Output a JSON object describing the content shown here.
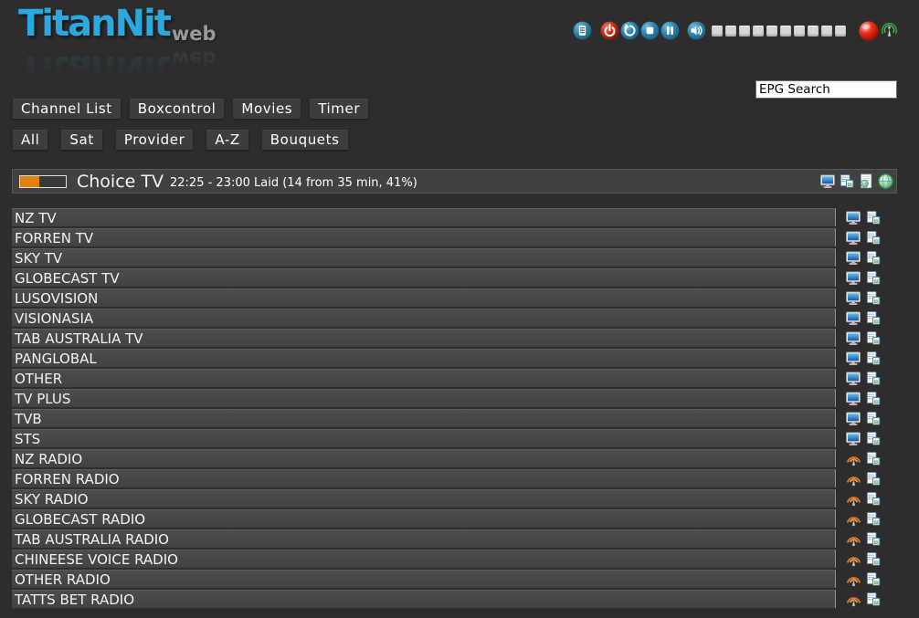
{
  "app": {
    "title_primary": "TitanNit",
    "title_secondary": "web"
  },
  "toolbar": {
    "icons": [
      "remote-icon",
      "power-icon",
      "restart-icon",
      "stop-icon",
      "pause-icon",
      "volume-icon",
      "record-icon",
      "signal-icon"
    ],
    "volume_segments": 10
  },
  "search": {
    "value": "EPG Search"
  },
  "nav": {
    "main": [
      {
        "label": "Channel List"
      },
      {
        "label": "Boxcontrol"
      },
      {
        "label": "Movies"
      },
      {
        "label": "Timer"
      }
    ],
    "filters": [
      {
        "label": "All"
      },
      {
        "label": "Sat"
      },
      {
        "label": "Provider"
      },
      {
        "label": "A-Z"
      },
      {
        "label": "Bouquets"
      }
    ]
  },
  "now_playing": {
    "channel": "Choice TV",
    "time": "22:25 - 23:00",
    "program": "Laid",
    "details": "22:25 - 23:00 Laid (14 from 35 min, 41%)",
    "progress_percent": 41,
    "icons": [
      "stream-icon",
      "epg-icon",
      "webtv-icon",
      "globe-icon"
    ]
  },
  "channels": [
    {
      "name": "NZ TV",
      "type": "tv"
    },
    {
      "name": "FORREN TV",
      "type": "tv"
    },
    {
      "name": "SKY TV",
      "type": "tv"
    },
    {
      "name": "GLOBECAST TV",
      "type": "tv"
    },
    {
      "name": "LUSOVISION",
      "type": "tv"
    },
    {
      "name": "VISIONASIA",
      "type": "tv"
    },
    {
      "name": "TAB AUSTRALIA TV",
      "type": "tv"
    },
    {
      "name": "PANGLOBAL",
      "type": "tv"
    },
    {
      "name": "OTHER",
      "type": "tv"
    },
    {
      "name": "TV PLUS",
      "type": "tv"
    },
    {
      "name": "TVB",
      "type": "tv"
    },
    {
      "name": "STS",
      "type": "tv"
    },
    {
      "name": "NZ RADIO",
      "type": "radio"
    },
    {
      "name": "FORREN RADIO",
      "type": "radio"
    },
    {
      "name": "SKY RADIO",
      "type": "radio"
    },
    {
      "name": "GLOBECAST RADIO",
      "type": "radio"
    },
    {
      "name": "TAB AUSTRALIA RADIO",
      "type": "radio"
    },
    {
      "name": "CHINEESE VOICE RADIO",
      "type": "radio"
    },
    {
      "name": "OTHER RADIO",
      "type": "radio"
    },
    {
      "name": "TATTS BET RADIO",
      "type": "radio"
    }
  ],
  "colors": {
    "page_bg": "#2d2d2d",
    "row_bg": "#454545",
    "accent_orange": "#e1820e",
    "logo_blue": "#2ba9de",
    "button_bg": "#3d3d3d"
  }
}
